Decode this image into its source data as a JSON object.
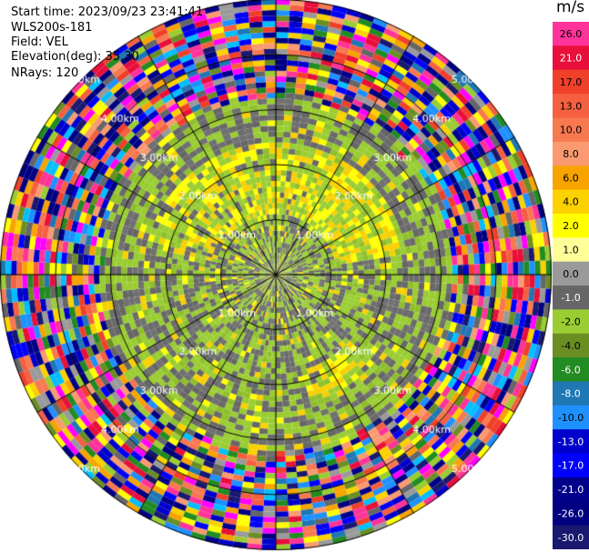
{
  "header": {
    "start_time": "Start time: 2023/09/23 23:41:41",
    "instrument": "WLS200s-181",
    "field": "Field: VEL",
    "elevation": "Elevation(deg): 35.30",
    "nrays": "NRays: 120"
  },
  "colorbar": {
    "unit": "m/s",
    "levels": [
      {
        "label": "26.0",
        "color": "#ff3399"
      },
      {
        "label": "21.0",
        "color": "#e8103a"
      },
      {
        "label": "17.0",
        "color": "#f0402a"
      },
      {
        "label": "13.0",
        "color": "#f56040"
      },
      {
        "label": "10.0",
        "color": "#f87850"
      },
      {
        "label": "8.0",
        "color": "#fa9a70"
      },
      {
        "label": "6.0",
        "color": "#f7a400"
      },
      {
        "label": "4.0",
        "color": "#fbd100"
      },
      {
        "label": "2.0",
        "color": "#ffff00"
      },
      {
        "label": "1.0",
        "color": "#ffff99"
      },
      {
        "label": "0.0",
        "color": "#9a9a9a"
      },
      {
        "label": "-1.0",
        "color": "#666666"
      },
      {
        "label": "-2.0",
        "color": "#9acd32"
      },
      {
        "label": "-4.0",
        "color": "#6b8e23"
      },
      {
        "label": "-6.0",
        "color": "#228b22"
      },
      {
        "label": "-8.0",
        "color": "#1f77b4"
      },
      {
        "label": "-10.0",
        "color": "#1e90ff"
      },
      {
        "label": "-13.0",
        "color": "#0000cd"
      },
      {
        "label": "-17.0",
        "color": "#0000ff"
      },
      {
        "label": "-21.0",
        "color": "#00008b"
      },
      {
        "label": "-26.0",
        "color": "#000080"
      },
      {
        "label": "-30.0",
        "color": "#191970"
      }
    ]
  },
  "chart_data": {
    "type": "heatmap",
    "projection": "polar (PPI scan)",
    "field": "VEL",
    "rays": 120,
    "range_rings": [
      {
        "range_km": 1.0,
        "label": "1.00km"
      },
      {
        "range_km": 2.0,
        "label": "2.00km"
      },
      {
        "range_km": 3.0,
        "label": "3.00km"
      },
      {
        "range_km": 4.0,
        "label": "4.00km"
      },
      {
        "range_km": 5.0,
        "label": "5.00km"
      }
    ],
    "max_range_km": 5.0,
    "spokes_deg": [
      0,
      30,
      60,
      90,
      120,
      150,
      180,
      210,
      240,
      270,
      300,
      330
    ],
    "regions_description": "inner ~3.3 km: low velocities (-2.0 to 2.0 m/s, gray/green/yellow); beyond ~3.3 km: noisy full-range colors"
  }
}
